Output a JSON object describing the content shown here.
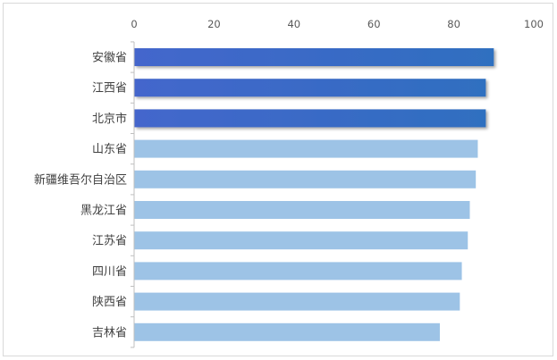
{
  "chart_data": {
    "type": "bar",
    "orientation": "horizontal",
    "categories": [
      "安徽省",
      "江西省",
      "北京市",
      "山东省",
      "新疆维吾尔自治区",
      "黑龙江省",
      "江苏省",
      "四川省",
      "陕西省",
      "吉林省"
    ],
    "values": [
      90,
      88,
      88,
      86,
      85.5,
      84,
      83.5,
      82,
      81.5,
      76.5
    ],
    "highlight_top": 3,
    "xlim": [
      0,
      100
    ],
    "xticks": [
      0,
      20,
      40,
      60,
      80,
      100
    ],
    "xaxis_position": "top",
    "title": "",
    "xlabel": "",
    "ylabel": "",
    "grid": false,
    "legend": "none",
    "colors": {
      "highlight_start": "#4466cc",
      "highlight_end": "#2f6fc0",
      "normal": "#9dc3e6",
      "axis": "#bfbfbf"
    }
  }
}
